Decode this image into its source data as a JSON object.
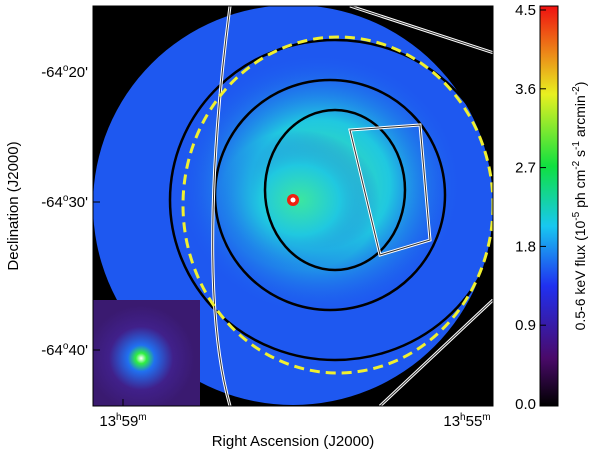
{
  "image": {
    "x_axis": {
      "title": "Right Ascension (J2000)",
      "ticks": [
        [
          "13",
          "h",
          "59",
          "m"
        ],
        [
          "13",
          "h",
          "55",
          "m"
        ]
      ]
    },
    "y_axis": {
      "title": "Declination (J2000)",
      "ticks": [
        [
          "-64",
          "o",
          "20'"
        ],
        [
          "-64",
          "o",
          "30'"
        ],
        [
          "-64",
          "o",
          "40'"
        ]
      ]
    },
    "colorbar": {
      "lim": [
        0,
        4.5
      ],
      "ticks": [
        {
          "value": 0,
          "label": "0.0"
        },
        {
          "value": 0.9,
          "label": "0.9"
        },
        {
          "value": 1.8,
          "label": "1.8"
        },
        {
          "value": 2.7,
          "label": "2.7"
        },
        {
          "value": 3.6,
          "label": "3.6"
        },
        {
          "value": 4.5,
          "label": "4.5"
        }
      ],
      "label": [
        "0.5-6 keV flux (10",
        "-5",
        " ph cm",
        "-2",
        " s",
        "-1",
        " arcmin",
        "-2",
        ")"
      ]
    }
  }
}
